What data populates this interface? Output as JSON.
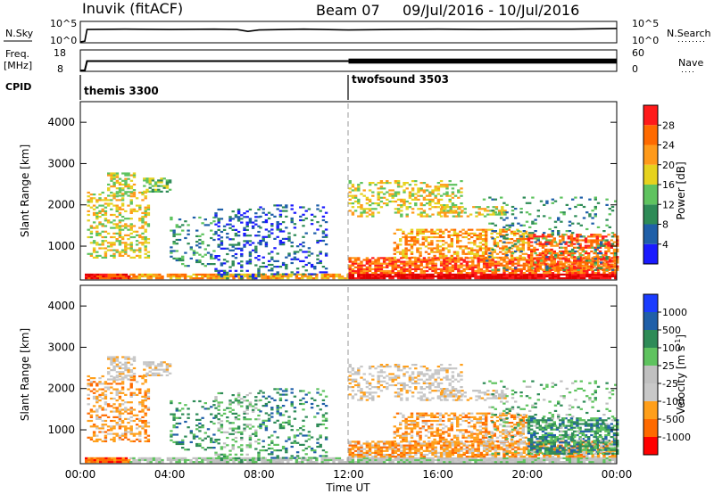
{
  "header": {
    "title": "Inuvik (fitACF)",
    "beam": "Beam 07",
    "date_range": "09/Jul/2016 - 10/Jul/2016"
  },
  "colors": {
    "power_scale": [
      "#1a1aff",
      "#1f5fa8",
      "#2e8b57",
      "#5fc35f",
      "#e6d21e",
      "#ff9a1a",
      "#ff6a00",
      "#ff1a1a",
      "#e00000"
    ],
    "velocity_scale": [
      "#ff0000",
      "#ff6a00",
      "#ff9f1a",
      "#c8c8c8",
      "#c0c0c0",
      "#5fc35f",
      "#2e8b57",
      "#1f5fa8",
      "#1a3cff"
    ],
    "ground_scatter": "#c0c0c0"
  },
  "chart_data": [
    {
      "type": "line",
      "panel": "noise",
      "left_label": "N.Sky",
      "left_ticks": [
        "10^5",
        "10^0"
      ],
      "right_label": "N.Search",
      "right_ticks": [
        "10^5",
        "10^0"
      ],
      "series": [
        {
          "x_hours": [
            0,
            0.2,
            0.3,
            2,
            4,
            6,
            7,
            7.5,
            8,
            10,
            12,
            14,
            16,
            18,
            20,
            22,
            24
          ],
          "log10": [
            0,
            0.2,
            3.3,
            3.4,
            3.3,
            3.4,
            3.3,
            2.8,
            3.2,
            3.4,
            3.2,
            3.3,
            3.4,
            3.3,
            3.4,
            3.4,
            3.6
          ]
        }
      ]
    },
    {
      "type": "line",
      "panel": "frequency",
      "left_label": "Freq.",
      "left_unit": "[MHz]",
      "left_ticks": [
        "18",
        "8"
      ],
      "right_label": "Nave",
      "right_ticks": [
        "60",
        "0"
      ],
      "series": [
        {
          "x_hours": [
            0,
            0.2,
            0.3,
            24
          ],
          "mhz": [
            8,
            8,
            13,
            13
          ]
        },
        {
          "name_hidden": true,
          "x_hours": [
            12,
            24
          ],
          "nave_band": [
            22,
            38
          ]
        }
      ]
    },
    {
      "type": "table",
      "panel": "cpid",
      "label": "CPID",
      "modes": [
        {
          "start_hour": 0,
          "label": "themis 3300"
        },
        {
          "start_hour": 12,
          "label": "twofsound 3503"
        }
      ]
    },
    {
      "type": "heatmap",
      "panel": "power",
      "ylabel": "Slant Range [km]",
      "y_ticks": [
        1000,
        2000,
        3000,
        4000
      ],
      "ylim": [
        180,
        4500
      ],
      "xlim_hours": [
        0,
        24
      ],
      "colorbar_label": "Power [dB]",
      "colorbar_ticks": [
        4,
        8,
        12,
        16,
        20,
        24,
        28
      ],
      "colorbar_range": [
        0,
        30
      ]
    },
    {
      "type": "heatmap",
      "panel": "velocity",
      "ylabel": "Slant Range [km]",
      "y_ticks": [
        1000,
        2000,
        3000,
        4000
      ],
      "ylim": [
        180,
        4500
      ],
      "xlim_hours": [
        0,
        24
      ],
      "xlabel": "Time UT",
      "x_ticks": [
        "00:00",
        "04:00",
        "08:00",
        "12:00",
        "16:00",
        "20:00",
        "00:00"
      ],
      "colorbar_label": "Velocity [m s",
      "colorbar_label_sup": "-1",
      "colorbar_label_end": "]",
      "colorbar_ticks": [
        "1000",
        "500",
        "100",
        "25",
        "-25",
        "-100",
        "-500",
        "-1000"
      ]
    }
  ]
}
